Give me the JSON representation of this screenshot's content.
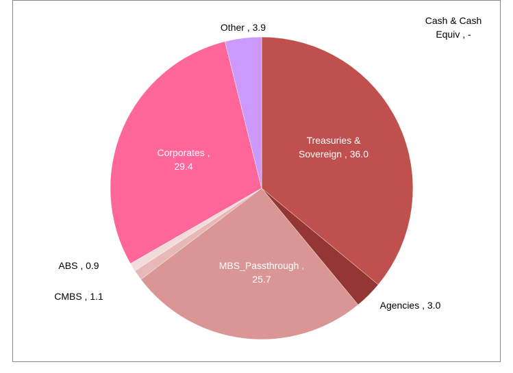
{
  "chart_data": {
    "type": "pie",
    "categories": [
      "Treasuries & Sovereign",
      "Agencies",
      "MBS_Passthrough",
      "CMBS",
      "ABS",
      "Corporates",
      "Other",
      "Cash & Cash Equiv"
    ],
    "values": [
      36.0,
      3.0,
      25.7,
      1.1,
      0.9,
      29.4,
      3.9,
      0
    ],
    "value_labels": [
      "36.0",
      "3.0",
      "25.7",
      "1.1",
      "0.9",
      "29.4",
      "3.9",
      "-"
    ],
    "label_separator": " , ",
    "colors": [
      "#c0504d",
      "#943634",
      "#d99694",
      "#e6b9b8",
      "#f2dcdb",
      "#ff6699",
      "#cc99ff",
      "#4f81bd"
    ]
  }
}
